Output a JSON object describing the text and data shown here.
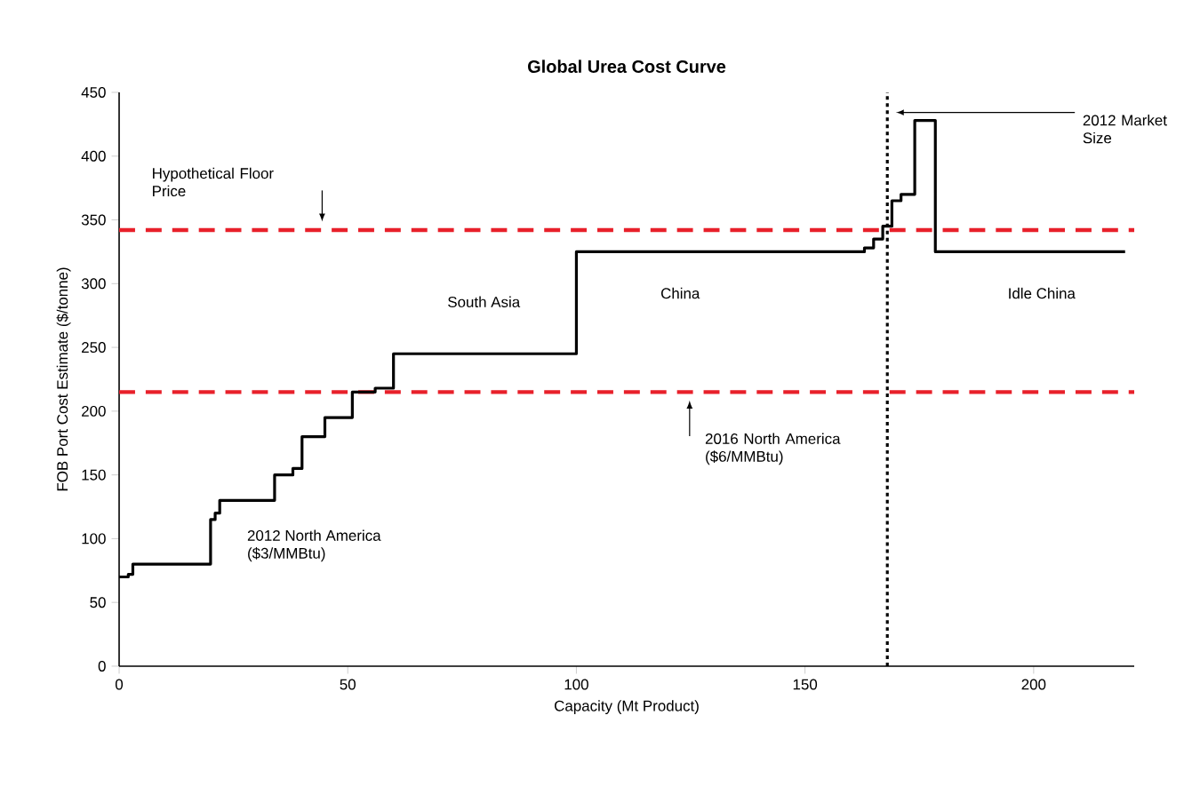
{
  "chart_data": {
    "type": "step",
    "title": "Global Urea Cost Curve",
    "xlabel": "Capacity (Mt Product)",
    "ylabel": "FOB Port Cost Estimate ($/tonne)",
    "x": [
      0,
      2,
      3,
      20,
      21,
      22,
      34,
      38,
      40,
      45,
      51,
      56,
      60,
      100,
      163,
      165,
      167,
      169,
      171,
      174,
      178.5,
      220
    ],
    "series": [
      {
        "color": "#000000",
        "values": [
          70,
          72,
          80,
          115,
          120,
          130,
          150,
          155,
          180,
          195,
          215,
          218,
          245,
          325,
          328,
          335,
          345,
          365,
          370,
          428,
          325,
          325
        ]
      }
    ],
    "xlim": [
      0,
      222
    ],
    "xticks": [
      0,
      50,
      100,
      150,
      200
    ],
    "ylim": [
      0,
      450
    ],
    "yticks": [
      0,
      50,
      100,
      150,
      200,
      250,
      300,
      350,
      400,
      450
    ],
    "grid": false,
    "marker": "none",
    "line_style": "solid",
    "ref_lines": [
      {
        "axis": "y",
        "value": 342,
        "label": "Hypothetical Floor Price",
        "color": "#e8202a",
        "line_style": "dashed"
      },
      {
        "axis": "y",
        "value": 215,
        "label": "2016 North America ($6/MMBtu)",
        "color": "#e8202a",
        "line_style": "dashed"
      },
      {
        "axis": "x",
        "value": 168,
        "label": "2012 Market Size",
        "color": "#000000",
        "line_style": "dotted"
      }
    ],
    "annotations": [
      "2012 North America ($3/MMBtu)",
      "South Asia",
      "China",
      "Idle China"
    ]
  }
}
